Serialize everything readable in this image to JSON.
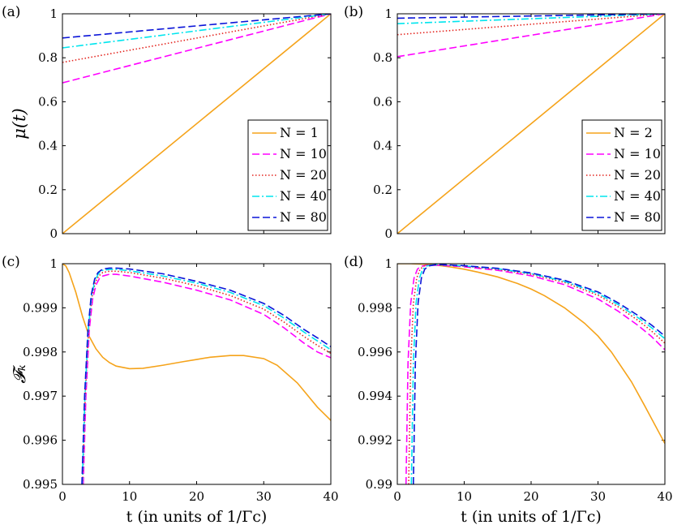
{
  "chart_data": [
    {
      "type": "line",
      "panel_label": "(a)",
      "ylabel": "μ(t)",
      "xlabel": "",
      "xlim": [
        0,
        40
      ],
      "ylim": [
        0,
        1
      ],
      "xticks": [
        0,
        10,
        20,
        30,
        40
      ],
      "yticks": [
        0,
        0.2,
        0.4,
        0.6,
        0.8,
        1
      ],
      "ytick_labels": [
        "0",
        "0.2",
        "0.4",
        "0.6",
        "0.8",
        "1"
      ],
      "show_xtick_labels": false,
      "legend": "bottom-right",
      "series": [
        {
          "name": "N = 1",
          "style": "solid",
          "x": [
            0,
            40
          ],
          "y": [
            0.0,
            1.0
          ]
        },
        {
          "name": "N = 10",
          "style": "dashed",
          "x": [
            0,
            40
          ],
          "y": [
            0.686,
            1.0
          ]
        },
        {
          "name": "N = 20",
          "style": "dotted",
          "x": [
            0,
            40
          ],
          "y": [
            0.779,
            1.0
          ]
        },
        {
          "name": "N = 40",
          "style": "dashdot",
          "x": [
            0,
            40
          ],
          "y": [
            0.845,
            1.0
          ]
        },
        {
          "name": "N = 80",
          "style": "dashed",
          "x": [
            0,
            40
          ],
          "y": [
            0.89,
            1.0
          ]
        }
      ]
    },
    {
      "type": "line",
      "panel_label": "(b)",
      "ylabel": "",
      "xlabel": "",
      "xlim": [
        0,
        40
      ],
      "ylim": [
        0,
        1
      ],
      "xticks": [
        0,
        10,
        20,
        30,
        40
      ],
      "yticks": [
        0,
        0.2,
        0.4,
        0.6,
        0.8,
        1
      ],
      "ytick_labels": [
        "0",
        "0.2",
        "0.4",
        "0.6",
        "0.8",
        "1"
      ],
      "show_xtick_labels": false,
      "legend": "bottom-right",
      "series": [
        {
          "name": "N = 2",
          "style": "solid",
          "x": [
            0,
            40
          ],
          "y": [
            0.0,
            1.0
          ]
        },
        {
          "name": "N = 10",
          "style": "dashed",
          "x": [
            0,
            40
          ],
          "y": [
            0.805,
            1.0
          ]
        },
        {
          "name": "N = 20",
          "style": "dotted",
          "x": [
            0,
            40
          ],
          "y": [
            0.905,
            1.0
          ]
        },
        {
          "name": "N = 40",
          "style": "dashdot",
          "x": [
            0,
            40
          ],
          "y": [
            0.955,
            1.0
          ]
        },
        {
          "name": "N = 80",
          "style": "dashed",
          "x": [
            0,
            40
          ],
          "y": [
            0.98,
            1.0
          ]
        }
      ]
    },
    {
      "type": "line",
      "panel_label": "(c)",
      "ylabel": "𝓕ₖ",
      "xlabel": "t (in units of 1/Γc)",
      "xlim": [
        0,
        40
      ],
      "ylim": [
        0.995,
        1
      ],
      "xticks": [
        0,
        10,
        20,
        30,
        40
      ],
      "yticks": [
        0.995,
        0.996,
        0.997,
        0.998,
        0.999,
        1
      ],
      "ytick_labels": [
        "0.995",
        "0.996",
        "0.997",
        "0.998",
        "0.999",
        "1"
      ],
      "show_xtick_labels": true,
      "series": [
        {
          "name": "N = 1",
          "style": "solid",
          "x": [
            0,
            0.5,
            1,
            2,
            3,
            4,
            5,
            6,
            7,
            8,
            10,
            12,
            15,
            18,
            20,
            22,
            25,
            27,
            30,
            32,
            35,
            38,
            40
          ],
          "y": [
            1.0,
            0.99995,
            0.9998,
            0.99935,
            0.9988,
            0.99835,
            0.99807,
            0.99788,
            0.99776,
            0.99768,
            0.99762,
            0.99763,
            0.9977,
            0.99778,
            0.99783,
            0.99788,
            0.99792,
            0.99792,
            0.99785,
            0.9977,
            0.9973,
            0.99675,
            0.99645
          ]
        },
        {
          "name": "N = 10",
          "style": "dashed",
          "x": [
            3.1,
            3.5,
            4,
            4.5,
            5,
            5.5,
            6,
            7,
            8,
            10,
            15,
            20,
            25,
            30,
            33,
            36,
            38,
            40
          ],
          "y": [
            0.995,
            0.997,
            0.9985,
            0.9992,
            0.99952,
            0.99966,
            0.99972,
            0.99976,
            0.99976,
            0.99972,
            0.99958,
            0.9994,
            0.99918,
            0.99885,
            0.99855,
            0.9982,
            0.998,
            0.99787
          ]
        },
        {
          "name": "N = 20",
          "style": "dotted",
          "x": [
            3.0,
            3.4,
            3.9,
            4.4,
            4.9,
            5.4,
            6,
            7,
            8,
            10,
            15,
            20,
            25,
            30,
            33,
            36,
            38,
            40
          ],
          "y": [
            0.995,
            0.997,
            0.9985,
            0.99925,
            0.99958,
            0.99972,
            0.9998,
            0.99983,
            0.99983,
            0.9998,
            0.99967,
            0.9995,
            0.99928,
            0.99897,
            0.99868,
            0.99835,
            0.99815,
            0.99797
          ]
        },
        {
          "name": "N = 40",
          "style": "dashdot",
          "x": [
            2.95,
            3.35,
            3.85,
            4.35,
            4.85,
            5.35,
            6,
            7,
            8,
            10,
            15,
            20,
            25,
            30,
            33,
            36,
            38,
            40
          ],
          "y": [
            0.995,
            0.997,
            0.9985,
            0.99928,
            0.99962,
            0.99977,
            0.99985,
            0.99987,
            0.99987,
            0.99984,
            0.99972,
            0.99956,
            0.99935,
            0.99905,
            0.99877,
            0.99845,
            0.99825,
            0.99805
          ]
        },
        {
          "name": "N = 80",
          "style": "dashed",
          "x": [
            2.9,
            3.3,
            3.8,
            4.3,
            4.8,
            5.3,
            6,
            7,
            8,
            10,
            15,
            20,
            25,
            30,
            33,
            36,
            38,
            40
          ],
          "y": [
            0.995,
            0.997,
            0.9985,
            0.9993,
            0.99965,
            0.9998,
            0.99988,
            0.9999,
            0.9999,
            0.99988,
            0.99977,
            0.9996,
            0.9994,
            0.9991,
            0.99883,
            0.99851,
            0.99832,
            0.99812
          ]
        }
      ]
    },
    {
      "type": "line",
      "panel_label": "(d)",
      "ylabel": "",
      "xlabel": "t (in units of 1/Γc)",
      "xlim": [
        0,
        40
      ],
      "ylim": [
        0.99,
        1
      ],
      "xticks": [
        0,
        10,
        20,
        30,
        40
      ],
      "yticks": [
        0.99,
        0.992,
        0.994,
        0.996,
        0.998,
        1
      ],
      "ytick_labels": [
        "0.99",
        "0.992",
        "0.994",
        "0.996",
        "0.998",
        "1"
      ],
      "show_xtick_labels": true,
      "series": [
        {
          "name": "N = 2",
          "style": "solid",
          "x": [
            0,
            2,
            4,
            6,
            8,
            10,
            12,
            15,
            18,
            20,
            22,
            25,
            28,
            30,
            32,
            35,
            37,
            40
          ],
          "y": [
            1.0,
            1.0,
            0.99998,
            0.99993,
            0.99985,
            0.99975,
            0.99962,
            0.9994,
            0.9991,
            0.99885,
            0.99855,
            0.998,
            0.9973,
            0.99672,
            0.996,
            0.99465,
            0.99355,
            0.99185
          ]
        },
        {
          "name": "N = 10",
          "style": "dashed",
          "x": [
            1.3,
            1.6,
            2.0,
            2.5,
            3.0,
            3.5,
            4.5,
            6,
            8,
            10,
            15,
            20,
            25,
            30,
            33,
            36,
            38,
            40
          ],
          "y": [
            0.99,
            0.9955,
            0.9982,
            0.99935,
            0.99975,
            0.99988,
            0.99993,
            0.99993,
            0.9999,
            0.99986,
            0.9997,
            0.99945,
            0.99905,
            0.9984,
            0.99785,
            0.9972,
            0.9967,
            0.9961
          ]
        },
        {
          "name": "N = 20",
          "style": "dotted",
          "x": [
            1.7,
            2.0,
            2.4,
            2.9,
            3.4,
            4.0,
            5.0,
            6.5,
            8,
            10,
            15,
            20,
            25,
            30,
            33,
            36,
            38,
            40
          ],
          "y": [
            0.99,
            0.9955,
            0.9982,
            0.99935,
            0.99975,
            0.9999,
            0.99994,
            0.99994,
            0.99992,
            0.99989,
            0.99974,
            0.99952,
            0.99915,
            0.99857,
            0.99805,
            0.99743,
            0.99695,
            0.9964
          ]
        },
        {
          "name": "N = 40",
          "style": "dashdot",
          "x": [
            2.1,
            2.4,
            2.8,
            3.3,
            3.8,
            4.4,
            5.4,
            6.8,
            8,
            10,
            15,
            20,
            25,
            30,
            33,
            36,
            38,
            40
          ],
          "y": [
            0.99,
            0.9955,
            0.9982,
            0.99935,
            0.99975,
            0.9999,
            0.99995,
            0.99995,
            0.99993,
            0.9999,
            0.99977,
            0.99955,
            0.9992,
            0.99865,
            0.99815,
            0.99755,
            0.9971,
            0.9966
          ]
        },
        {
          "name": "N = 80",
          "style": "dashed",
          "x": [
            2.4,
            2.7,
            3.1,
            3.6,
            4.1,
            4.7,
            5.7,
            7.0,
            8,
            10,
            15,
            20,
            25,
            30,
            33,
            36,
            38,
            40
          ],
          "y": [
            0.99,
            0.9955,
            0.9982,
            0.99935,
            0.99975,
            0.9999,
            0.99995,
            0.99995,
            0.99994,
            0.99991,
            0.99979,
            0.99958,
            0.99925,
            0.99872,
            0.99823,
            0.99765,
            0.99722,
            0.99672
          ]
        }
      ]
    }
  ],
  "style": {
    "series_colors": [
      "#f5a31a",
      "#ff00ff",
      "#e4251f",
      "#00e5ee",
      "#0a14d8"
    ]
  }
}
